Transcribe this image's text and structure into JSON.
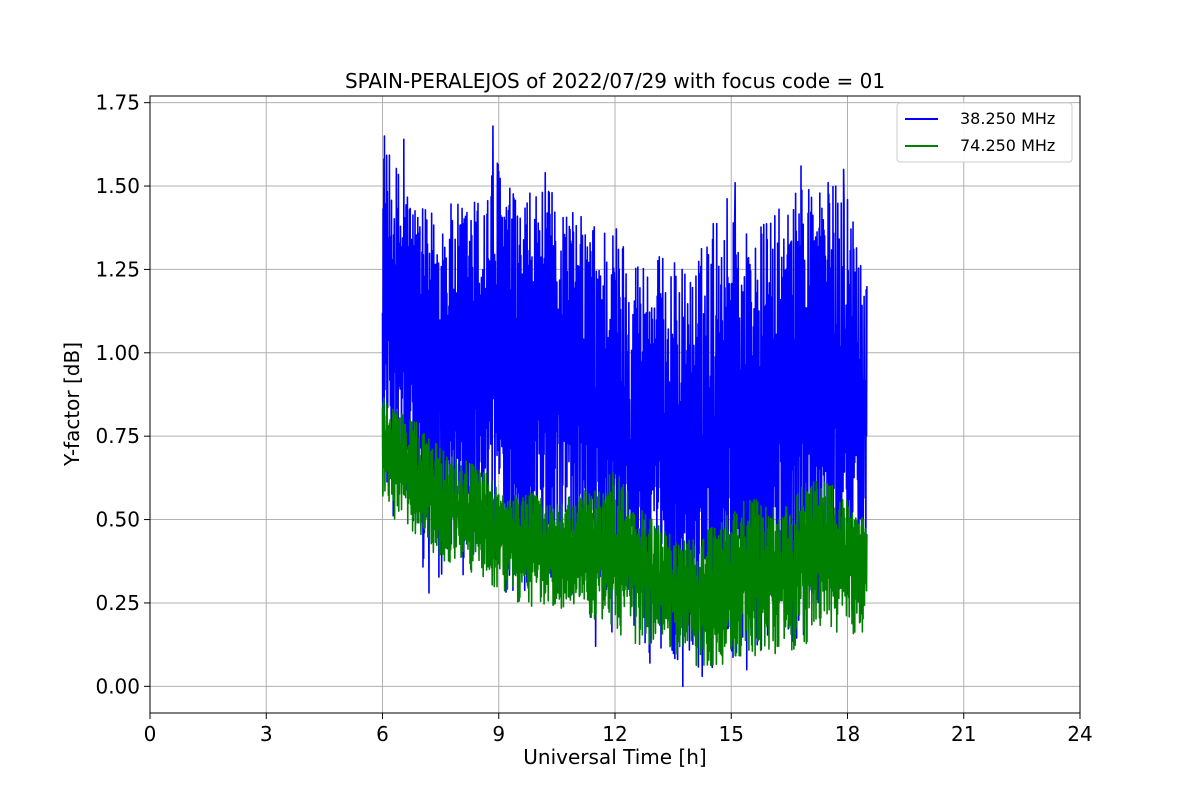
{
  "chart_data": {
    "type": "line",
    "title": "SPAIN-PERALEJOS of 2022/07/29 with focus code = 01",
    "xlabel": "Universal Time [h]",
    "ylabel": "Y-factor [dB]",
    "xlim": [
      0,
      24
    ],
    "ylim": [
      -0.08,
      1.77
    ],
    "x_ticks": [
      0,
      3,
      6,
      9,
      12,
      15,
      18,
      21,
      24
    ],
    "y_ticks": [
      0.0,
      0.25,
      0.5,
      0.75,
      1.0,
      1.25,
      1.5,
      1.75
    ],
    "x_tick_labels": [
      "0",
      "3",
      "6",
      "9",
      "12",
      "15",
      "18",
      "21",
      "24"
    ],
    "y_tick_labels": [
      "0.00",
      "0.25",
      "0.50",
      "0.75",
      "1.00",
      "1.25",
      "1.50",
      "1.75"
    ],
    "grid": true,
    "legend_position": "top-right",
    "series": [
      {
        "name": "38.250 MHz",
        "color": "#0000ff",
        "x": [
          6.0,
          6.5,
          7.0,
          7.5,
          8.0,
          8.5,
          9.0,
          9.5,
          10.0,
          10.5,
          11.0,
          11.5,
          12.0,
          12.5,
          13.0,
          13.5,
          14.0,
          14.5,
          15.0,
          15.5,
          16.0,
          16.5,
          17.0,
          17.5,
          18.0,
          18.5
        ],
        "upper": [
          1.62,
          1.55,
          1.43,
          1.45,
          1.45,
          1.48,
          1.6,
          1.45,
          1.5,
          1.48,
          1.42,
          1.4,
          1.4,
          1.3,
          1.3,
          1.28,
          1.25,
          1.4,
          1.5,
          1.35,
          1.42,
          1.45,
          1.55,
          1.52,
          1.5,
          1.3
        ],
        "lower": [
          0.55,
          0.45,
          0.35,
          0.32,
          0.32,
          0.3,
          0.28,
          0.25,
          0.25,
          0.23,
          0.2,
          0.15,
          0.12,
          0.1,
          0.08,
          0.05,
          0.02,
          0.05,
          0.05,
          0.08,
          0.08,
          0.1,
          0.15,
          0.2,
          0.2,
          0.2
        ],
        "peaks": [
          {
            "x": 6.05,
            "y": 1.65
          },
          {
            "x": 6.55,
            "y": 1.64
          },
          {
            "x": 8.85,
            "y": 1.68
          },
          {
            "x": 10.2,
            "y": 1.54
          },
          {
            "x": 15.1,
            "y": 1.51
          },
          {
            "x": 16.8,
            "y": 1.56
          },
          {
            "x": 17.9,
            "y": 1.55
          }
        ],
        "troughs": [
          {
            "x": 7.2,
            "y": 0.28
          },
          {
            "x": 11.5,
            "y": 0.12
          },
          {
            "x": 12.9,
            "y": 0.07
          },
          {
            "x": 13.75,
            "y": 0.0
          },
          {
            "x": 14.25,
            "y": 0.03
          },
          {
            "x": 15.4,
            "y": 0.05
          }
        ]
      },
      {
        "name": "74.250 MHz",
        "color": "#008000",
        "x": [
          6.0,
          6.5,
          7.0,
          7.5,
          8.0,
          8.5,
          9.0,
          9.5,
          10.0,
          10.5,
          11.0,
          11.5,
          12.0,
          12.5,
          13.0,
          13.5,
          14.0,
          14.5,
          15.0,
          15.5,
          16.0,
          16.5,
          17.0,
          17.5,
          18.0,
          18.5
        ],
        "upper": [
          0.9,
          0.83,
          0.78,
          0.72,
          0.7,
          0.66,
          0.6,
          0.58,
          0.58,
          0.55,
          0.58,
          0.6,
          0.65,
          0.55,
          0.5,
          0.45,
          0.44,
          0.48,
          0.52,
          0.58,
          0.55,
          0.56,
          0.62,
          0.62,
          0.56,
          0.5
        ],
        "lower": [
          0.52,
          0.45,
          0.42,
          0.38,
          0.35,
          0.32,
          0.28,
          0.24,
          0.22,
          0.2,
          0.18,
          0.16,
          0.14,
          0.12,
          0.1,
          0.08,
          0.06,
          0.04,
          0.04,
          0.06,
          0.08,
          0.1,
          0.12,
          0.14,
          0.15,
          0.15
        ]
      }
    ]
  }
}
